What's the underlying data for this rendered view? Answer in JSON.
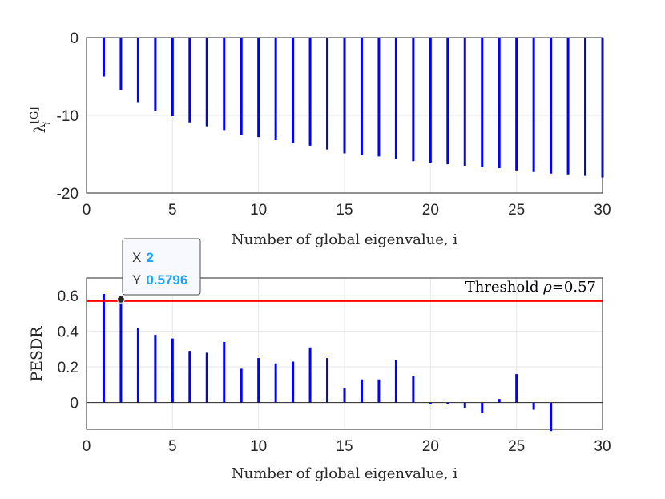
{
  "chart_data": [
    {
      "type": "stem",
      "xlabel": "Number of global eigenvalue, i",
      "ylabel": "λ_i^[G]",
      "ylabel_main": "λ",
      "ylabel_sub": "i",
      "ylabel_sup": "[G]",
      "xlim": [
        0,
        30
      ],
      "ylim": [
        -20,
        0
      ],
      "xticks": [
        "0",
        "5",
        "10",
        "15",
        "20",
        "25",
        "30"
      ],
      "yticks": [
        "0",
        "-10",
        "-20"
      ],
      "grid": true,
      "x": [
        1,
        2,
        3,
        4,
        5,
        6,
        7,
        8,
        9,
        10,
        11,
        12,
        13,
        14,
        15,
        16,
        17,
        18,
        19,
        20,
        21,
        22,
        23,
        24,
        25,
        26,
        27,
        28,
        29,
        30
      ],
      "values": [
        -5.0,
        -6.7,
        -8.3,
        -9.4,
        -10.1,
        -10.9,
        -11.4,
        -11.9,
        -12.5,
        -12.8,
        -13.2,
        -13.6,
        -13.9,
        -14.4,
        -14.9,
        -15.1,
        -15.3,
        -15.6,
        -15.9,
        -16.1,
        -16.3,
        -16.5,
        -16.7,
        -16.8,
        -17.1,
        -17.3,
        -17.5,
        -17.6,
        -17.8,
        -18.0
      ],
      "color": "#0000ff"
    },
    {
      "type": "stem",
      "xlabel": "Number of global eigenvalue, i",
      "ylabel": "PESDR",
      "xlim": [
        0,
        30
      ],
      "ylim": [
        -0.15,
        0.7
      ],
      "xticks": [
        "0",
        "5",
        "10",
        "15",
        "20",
        "25",
        "30"
      ],
      "yticks": [
        "0.6",
        "0.4",
        "0.2",
        "0"
      ],
      "ytick_values": [
        0.6,
        0.4,
        0.2,
        0
      ],
      "grid": true,
      "x": [
        1,
        2,
        3,
        4,
        5,
        6,
        7,
        8,
        9,
        10,
        11,
        12,
        13,
        14,
        15,
        16,
        17,
        18,
        19,
        20,
        21,
        22,
        23,
        24,
        25,
        26,
        27,
        28,
        29,
        30
      ],
      "values": [
        0.61,
        0.5796,
        0.42,
        0.38,
        0.36,
        0.29,
        0.28,
        0.34,
        0.19,
        0.25,
        0.22,
        0.23,
        0.31,
        0.25,
        0.08,
        0.13,
        0.13,
        0.24,
        0.15,
        -0.01,
        -0.01,
        -0.03,
        -0.06,
        0.02,
        0.16,
        -0.04,
        -0.16,
        0,
        0,
        0
      ],
      "color": "#0000ff",
      "threshold": {
        "value": 0.57,
        "label_main": "Threshold ",
        "label_rho": "ρ",
        "label_rest": "=0.57",
        "color": "#ff0000"
      },
      "datatip": {
        "x_label": "X",
        "x_value": "2",
        "y_label": "Y",
        "y_value": "0.5796",
        "x": 2,
        "y": 0.5796
      }
    }
  ]
}
